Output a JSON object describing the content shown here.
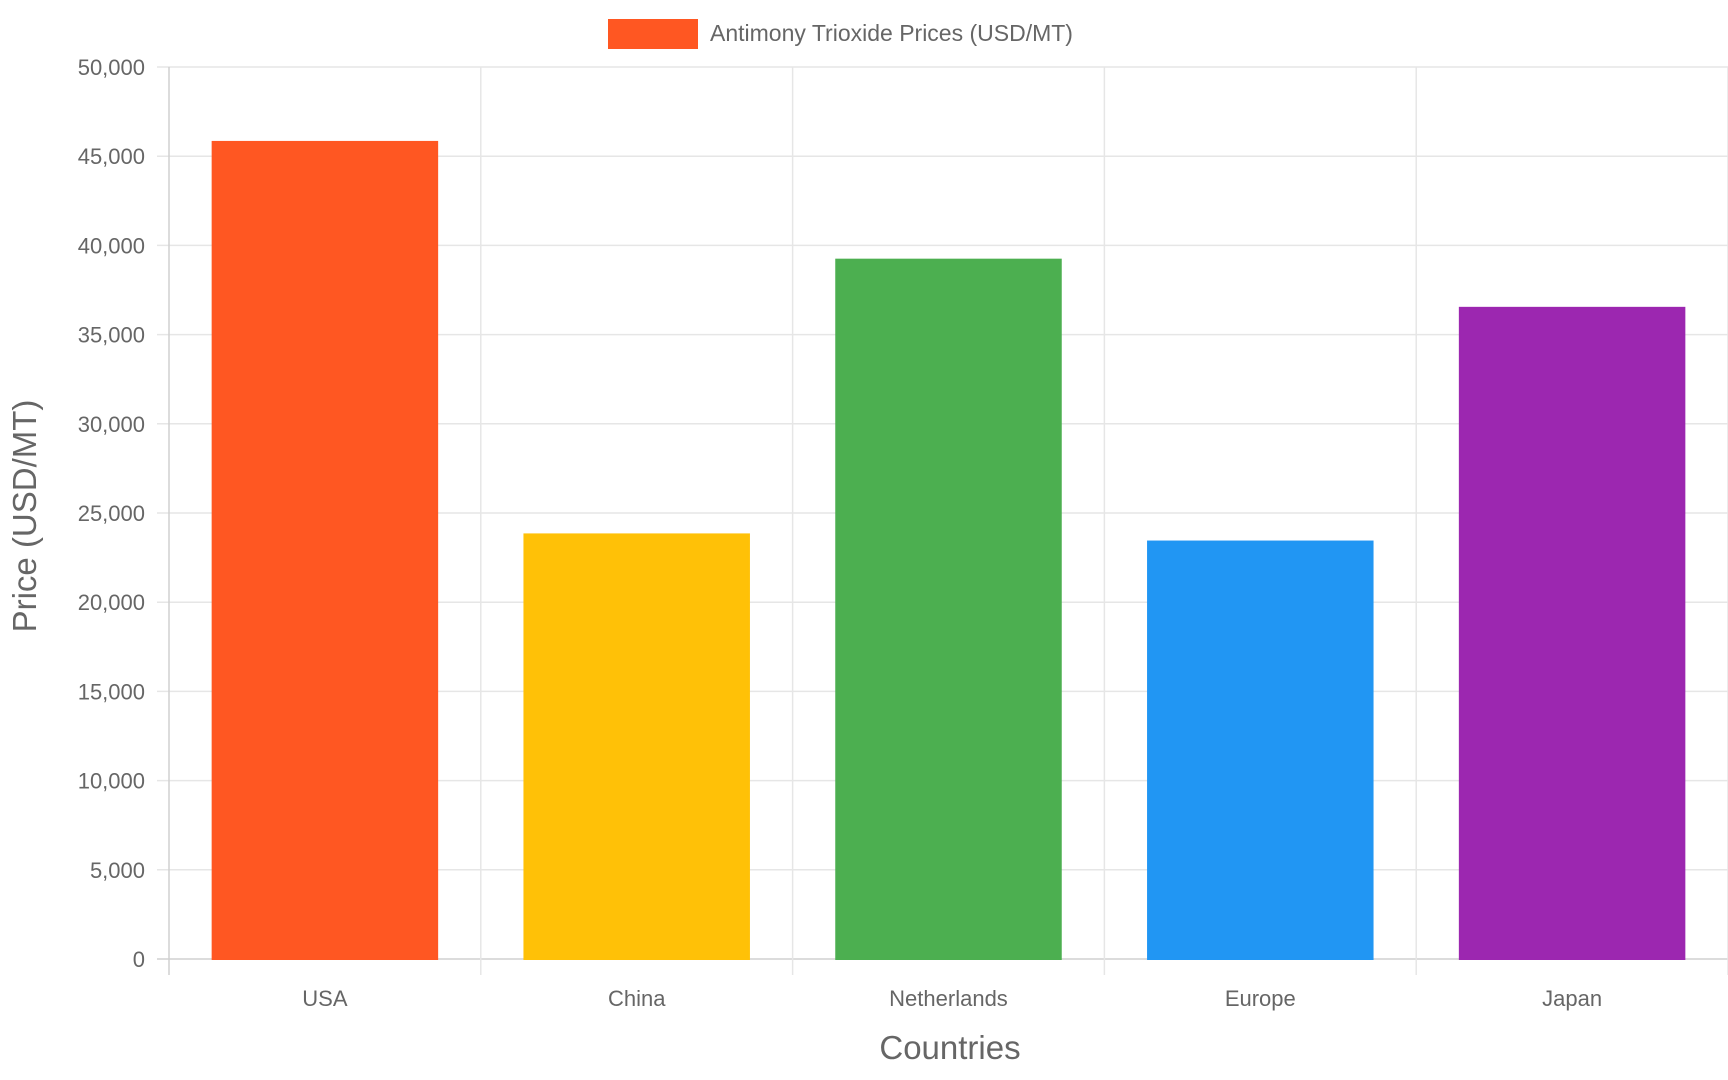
{
  "chart_data": {
    "type": "bar",
    "categories": [
      "USA",
      "China",
      "Netherlands",
      "Europe",
      "Japan"
    ],
    "series": [
      {
        "name": "Antimony Trioxide Prices (USD/MT)",
        "values": [
          45800,
          23800,
          39200,
          23400,
          36500
        ],
        "colors": [
          "#FF5722",
          "#FFC107",
          "#4CAF50",
          "#2196F3",
          "#9C27B0"
        ]
      }
    ],
    "xlabel": "Countries",
    "ylabel": "Price (USD/MT)",
    "ylim": [
      0,
      50000
    ],
    "y_ticks": [
      "0",
      "5,000",
      "10,000",
      "15,000",
      "20,000",
      "25,000",
      "30,000",
      "35,000",
      "40,000",
      "45,000",
      "50,000"
    ],
    "y_tick_values": [
      0,
      5000,
      10000,
      15000,
      20000,
      25000,
      30000,
      35000,
      40000,
      45000,
      50000
    ],
    "grid": true,
    "legend_position": "top",
    "legend_color": "#FF5722"
  }
}
